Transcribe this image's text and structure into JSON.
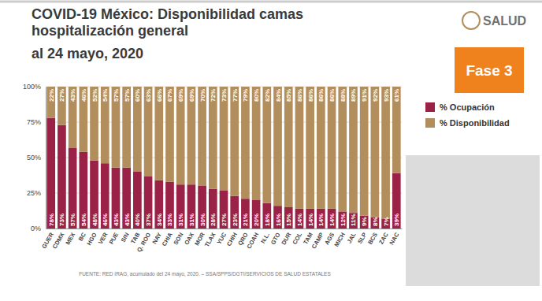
{
  "chart_data": {
    "type": "bar",
    "title": "COVID-19 México: Disponibilidad camas hospitalización general",
    "subtitle": "al 24 mayo, 2020",
    "annotations": [
      "SALUD",
      "Fase 3",
      "FUENTE: RED IRAG, acumulado del 24 mayo, 2020. – SSA/SPPS/DGTI/SERVICIOS DE SALUD ESTATALES"
    ],
    "categories": [
      "GUER",
      "CDMX",
      "MEX",
      "BC",
      "HGO",
      "VER",
      "PUE",
      "SIN",
      "TAB",
      "Q. ROO",
      "NAY",
      "CHIA",
      "SON",
      "OAX",
      "MOR",
      "TLAX",
      "YUC",
      "CHIH",
      "QRO",
      "COAH",
      "N.L.",
      "GTO",
      "DUR",
      "COL",
      "TAM",
      "CAMP",
      "AGS",
      "MICH",
      "JAL",
      "SLP",
      "BCS",
      "ZAC",
      "NAC"
    ],
    "series": [
      {
        "name": "% Ocupación",
        "color": "#9b2247",
        "values": [
          78,
          73,
          57,
          54,
          48,
          46,
          43,
          43,
          40,
          37,
          34,
          33,
          31,
          31,
          30,
          28,
          27,
          23,
          21,
          20,
          18,
          16,
          15,
          14,
          14,
          14,
          14,
          12,
          11,
          9,
          8,
          7,
          39
        ],
        "value_labels": [
          "78%",
          "73%",
          "57%",
          "54%",
          "48%",
          "46%",
          "43%",
          "43%",
          "40%",
          "37%",
          "34%",
          "33%",
          "31%",
          "31%",
          "30%",
          "28%",
          "27%",
          "23%",
          "21%",
          "20%",
          "18%",
          "16%",
          "15%",
          "14%",
          "14%",
          "14%",
          "14%",
          "12%",
          "11%",
          "9%",
          "8%",
          "7%",
          "39%"
        ]
      },
      {
        "name": "% Disponibilidad",
        "color": "#b38e5d",
        "values": [
          22,
          27,
          43,
          46,
          52,
          54,
          57,
          57,
          60,
          63,
          66,
          67,
          69,
          69,
          70,
          72,
          73,
          77,
          79,
          80,
          82,
          84,
          85,
          86,
          86,
          86,
          86,
          88,
          89,
          91,
          92,
          93,
          61
        ],
        "value_labels": [
          "22%",
          "27%",
          "43%",
          "46%",
          "52%",
          "54%",
          "57%",
          "57%",
          "60%",
          "63%",
          "66%",
          "67%",
          "69%",
          "69%",
          "70%",
          "72%",
          "73%",
          "77%",
          "79%",
          "80%",
          "82%",
          "84%",
          "85%",
          "86%",
          "86%",
          "86%",
          "86%",
          "88%",
          "89%",
          "91%",
          "92%",
          "93%",
          "61%"
        ]
      }
    ],
    "stacked": true,
    "data_labels": true,
    "grid": true,
    "legend": "right",
    "ylim": [
      0,
      100
    ],
    "yticks": [
      {
        "value": 0,
        "label": "0%"
      },
      {
        "value": 25,
        "label": "25%"
      },
      {
        "value": 50,
        "label": "50%"
      },
      {
        "value": 75,
        "label": "75%"
      },
      {
        "value": 100,
        "label": "100%"
      }
    ]
  }
}
